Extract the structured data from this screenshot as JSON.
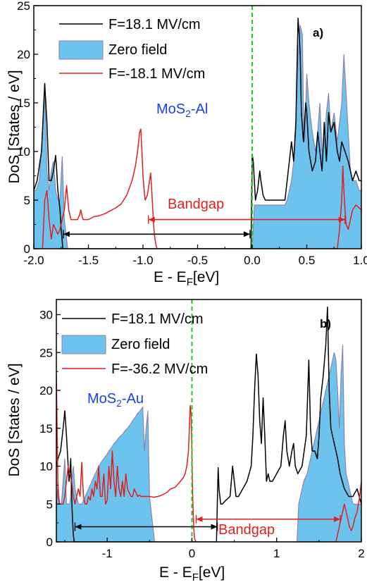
{
  "colors": {
    "field_pos": "#000000",
    "zero_field_fill": "#6cc4ee",
    "zero_field_line": "#8e7ea8",
    "field_neg": "#e02020",
    "fermi_line": "#1ecc1e",
    "material_label": "#1a3ff0",
    "bandgap": "#e02020"
  },
  "chart_data": [
    {
      "type": "line",
      "panel": "a)",
      "material_label": "MoS2-Al",
      "bandgap_label": "Bandgap",
      "xlabel": "E - EF[eV]",
      "ylabel": "DoS [States / eV]",
      "xlim": [
        -2.0,
        1.0
      ],
      "ylim": [
        0,
        25
      ],
      "xticks": [
        -2.0,
        -1.5,
        -1.0,
        -0.5,
        0.0,
        0.5,
        1.0
      ],
      "xtick_labels": [
        "-2.0",
        "-1.5",
        "-1.0",
        "-0.5",
        "0.0",
        "0.5",
        "1.0"
      ],
      "yticks": [
        0,
        5,
        10,
        15,
        20,
        25
      ],
      "ytick_labels": [
        "0",
        "5",
        "10",
        "15",
        "20",
        "25"
      ],
      "legend": [
        "F=18.1 MV/cm",
        "Zero field",
        "F=-18.1 MV/cm"
      ],
      "fermi_level": 0.0,
      "gap_arrows": [
        {
          "color": "black",
          "x_start": -1.73,
          "x_end": -0.02,
          "y": 1.5
        },
        {
          "color": "red",
          "x_start": -0.95,
          "x_end": 0.85,
          "y": 3.0
        }
      ],
      "series": [
        {
          "name": "F=18.1 MV/cm",
          "kind": "line",
          "x": [
            -2.0,
            -1.97,
            -1.93,
            -1.9,
            -1.88,
            -1.86,
            -1.84,
            -1.82,
            -1.8,
            -1.79,
            -1.78,
            -1.77,
            -1.76,
            -1.75,
            -1.74,
            -1.735,
            -0.01,
            -0.005,
            0.0,
            0.01,
            0.02,
            0.03,
            0.05,
            0.07,
            0.08,
            0.1,
            0.12,
            0.15,
            0.18,
            0.22,
            0.26,
            0.3,
            0.33,
            0.36,
            0.37,
            0.38,
            0.4,
            0.42,
            0.43,
            0.44,
            0.45,
            0.47,
            0.49,
            0.5,
            0.52,
            0.55,
            0.58,
            0.6,
            0.62,
            0.64,
            0.66,
            0.68,
            0.7,
            0.72,
            0.75,
            0.78,
            0.8,
            0.82,
            0.85,
            0.88,
            0.9,
            0.92,
            0.95,
            0.98,
            1.0
          ],
          "y": [
            6,
            7,
            10,
            17,
            13,
            7,
            7,
            8,
            9.6,
            8,
            6,
            5,
            4,
            2,
            0.8,
            0,
            0,
            5,
            9.7,
            9,
            7,
            5,
            6,
            8,
            7,
            5.5,
            5,
            5,
            5,
            5,
            5,
            5,
            8,
            11,
            10,
            9,
            13,
            23.7,
            22,
            20,
            14,
            11,
            15,
            14,
            10,
            8,
            9,
            12,
            10,
            8,
            13,
            9,
            14,
            12,
            13,
            10,
            9,
            11,
            10,
            9,
            8,
            7,
            8,
            7,
            7
          ]
        },
        {
          "name": "Zero field",
          "kind": "area",
          "x": [
            -2.0,
            -1.98,
            -1.95,
            -1.92,
            -1.9,
            -1.88,
            -1.86,
            -1.84,
            -1.82,
            -1.8,
            -1.78,
            -1.76,
            -1.74,
            -1.72,
            -1.7,
            -1.69,
            0.0,
            0.02,
            0.05,
            0.08,
            0.1,
            0.12,
            0.15,
            0.18,
            0.22,
            0.25,
            0.28,
            0.3,
            0.32,
            0.34,
            0.36,
            0.38,
            0.4,
            0.42,
            0.44,
            0.46,
            0.47,
            0.48,
            0.5,
            0.52,
            0.55,
            0.58,
            0.6,
            0.62,
            0.64,
            0.66,
            0.68,
            0.7,
            0.72,
            0.75,
            0.78,
            0.8,
            0.82,
            0.84,
            0.86,
            0.88,
            0.9,
            0.92,
            0.95,
            0.98,
            1.0
          ],
          "y": [
            6,
            6,
            7,
            12,
            17,
            8,
            6,
            8,
            9,
            6,
            5,
            5,
            9.5,
            3,
            1,
            0,
            0,
            4.5,
            4.5,
            4.5,
            4.5,
            4.5,
            4.5,
            4.5,
            4.5,
            4.5,
            4.5,
            4.5,
            5,
            6,
            7,
            9,
            12,
            20,
            23,
            22,
            14,
            11,
            18,
            15,
            12,
            10,
            12,
            15,
            10,
            11,
            14,
            16,
            12,
            14,
            11,
            13,
            15,
            20,
            16,
            12,
            8,
            7,
            7,
            6,
            6
          ]
        },
        {
          "name": "F=-18.1 MV/cm",
          "kind": "line",
          "x": [
            -1.92,
            -1.9,
            -1.88,
            -1.86,
            -1.84,
            -1.82,
            -1.8,
            -1.78,
            -1.76,
            -1.74,
            -1.72,
            -1.7,
            -1.68,
            -1.66,
            -1.64,
            -1.62,
            -1.6,
            -1.58,
            -1.57,
            -1.56,
            -1.55,
            -1.52,
            -1.5,
            -1.45,
            -1.4,
            -1.35,
            -1.3,
            -1.25,
            -1.2,
            -1.15,
            -1.1,
            -1.07,
            -1.05,
            -1.03,
            -1.02,
            -1.01,
            -1.0,
            -0.99,
            -0.98,
            -0.96,
            -0.94,
            -0.93,
            -0.92,
            -0.91,
            -0.9,
            -0.89,
            -0.88,
            -0.87,
            -0.86,
            0.78,
            0.79,
            0.8,
            0.82,
            0.83,
            0.84,
            0.85,
            0.86,
            0.88,
            0.9,
            0.92,
            0.95,
            0.98,
            1.0
          ],
          "y": [
            0,
            5,
            6,
            3,
            1,
            2.5,
            2,
            1.5,
            2,
            3,
            4,
            6.5,
            4,
            3,
            3,
            3,
            3,
            3.5,
            4,
            3.5,
            3,
            3,
            3,
            3.3,
            3.4,
            3.6,
            3.9,
            4.2,
            4.6,
            5.5,
            7,
            8.5,
            10,
            12,
            12.3,
            10,
            7.5,
            6,
            5,
            5.5,
            7,
            7.8,
            6,
            4,
            2,
            1,
            0.3,
            0,
            0,
            0,
            1,
            2,
            5,
            8.5,
            6,
            4,
            2.5,
            2,
            3,
            4,
            4.5,
            4.2,
            4
          ]
        }
      ]
    },
    {
      "type": "line",
      "panel": "b)",
      "material_label": "MoS2-Au",
      "bandgap_label": "Bandgap",
      "xlabel": "E - EF[eV]",
      "ylabel": "DoS [States / eV]",
      "xlim": [
        -1.6,
        2.0
      ],
      "ylim": [
        0,
        32
      ],
      "xticks": [
        -1,
        0,
        1,
        2
      ],
      "xtick_labels": [
        "-1",
        "0",
        "1",
        "2"
      ],
      "yticks": [
        0,
        5,
        10,
        15,
        20,
        25,
        30
      ],
      "ytick_labels": [
        "0",
        "5",
        "10",
        "15",
        "20",
        "25",
        "30"
      ],
      "legend": [
        "F=18.1 MV/cm",
        "Zero field",
        "F=-36.2 MV/cm"
      ],
      "fermi_level": 0.0,
      "gap_arrows": [
        {
          "color": "black",
          "x_start": -1.38,
          "x_end": 0.3,
          "y": 2.0
        },
        {
          "color": "red",
          "x_start": 0.05,
          "x_end": 1.75,
          "y": 3.0
        }
      ],
      "series": [
        {
          "name": "F=18.1 MV/cm",
          "kind": "line",
          "x": [
            -1.6,
            -1.58,
            -1.55,
            -1.52,
            -1.5,
            -1.48,
            -1.46,
            -1.45,
            -1.44,
            -1.43,
            -1.42,
            -1.41,
            -1.4,
            -1.39,
            0.29,
            0.3,
            0.31,
            0.32,
            0.34,
            0.36,
            0.4,
            0.45,
            0.48,
            0.5,
            0.52,
            0.55,
            0.6,
            0.65,
            0.7,
            0.72,
            0.74,
            0.76,
            0.78,
            0.8,
            0.82,
            0.84,
            0.86,
            0.88,
            0.9,
            0.92,
            0.95,
            1.0,
            1.05,
            1.08,
            1.1,
            1.12,
            1.15,
            1.18,
            1.2,
            1.22,
            1.25,
            1.3,
            1.35,
            1.38,
            1.4,
            1.42,
            1.45,
            1.48,
            1.5,
            1.52,
            1.55,
            1.58,
            1.6,
            1.62,
            1.64,
            1.66,
            1.68,
            1.7,
            1.72,
            1.75,
            1.8,
            1.85,
            1.9,
            1.95,
            2.0
          ],
          "y": [
            10,
            11,
            12,
            15,
            17.3,
            14,
            10,
            8,
            9,
            11,
            6,
            3,
            1,
            0,
            0,
            5,
            9.8,
            7,
            5,
            5,
            5.5,
            6,
            10,
            8,
            6,
            6,
            7,
            8,
            10,
            14,
            20,
            24.8,
            22,
            16,
            13,
            19,
            14,
            8,
            9,
            8,
            8,
            9,
            10,
            14,
            16,
            12,
            10,
            12,
            13,
            10,
            9,
            10,
            14,
            24,
            15,
            12,
            12,
            11,
            14,
            19,
            22,
            26,
            31,
            20,
            15,
            14,
            13,
            12,
            11,
            9,
            7,
            6,
            6,
            7,
            5
          ]
        },
        {
          "name": "Zero field",
          "kind": "area",
          "x": [
            -1.6,
            -1.58,
            -1.56,
            -1.54,
            -1.52,
            -1.5,
            -1.48,
            -1.46,
            -1.44,
            -1.42,
            -1.4,
            -1.38,
            -1.36,
            -1.34,
            -1.32,
            -1.3,
            -1.28,
            -1.26,
            -1.24,
            -1.22,
            -1.2,
            -1.18,
            -1.16,
            -1.14,
            -1.12,
            -1.1,
            -1.08,
            -1.06,
            -1.04,
            -1.02,
            -1.0,
            -0.98,
            -0.96,
            -0.94,
            -0.92,
            -0.9,
            -0.88,
            -0.86,
            -0.84,
            -0.82,
            -0.8,
            -0.78,
            -0.76,
            -0.74,
            -0.72,
            -0.7,
            -0.68,
            -0.66,
            -0.64,
            -0.62,
            -0.6,
            -0.58,
            -0.56,
            -0.54,
            -0.52,
            -0.5,
            -0.48,
            -0.46,
            -0.44,
            1.24,
            1.26,
            1.28,
            1.3,
            1.32,
            1.34,
            1.36,
            1.38,
            1.4,
            1.42,
            1.44,
            1.46,
            1.48,
            1.5,
            1.52,
            1.54,
            1.56,
            1.58,
            1.6,
            1.62,
            1.64,
            1.66,
            1.68,
            1.7,
            1.72,
            1.74,
            1.76,
            1.78,
            1.8,
            1.82,
            1.84,
            1.86,
            1.88,
            1.9,
            1.92,
            1.95,
            2.0
          ],
          "y": [
            4,
            8,
            5,
            5,
            8,
            11,
            5,
            5,
            5,
            8,
            10,
            7,
            6,
            5,
            5,
            5,
            5.5,
            6,
            6.5,
            7,
            7.5,
            8,
            8.5,
            9,
            9.5,
            10,
            10.3,
            10.7,
            11,
            11.3,
            11.6,
            12,
            12.3,
            12.6,
            13,
            13.2,
            13.5,
            13.8,
            14,
            14.2,
            14.5,
            14.8,
            15,
            15.3,
            15.6,
            16,
            16.3,
            16.6,
            17,
            17.2,
            17.5,
            17.8,
            12,
            15,
            17.3,
            6,
            4,
            2,
            0,
            0,
            5,
            6,
            7,
            8,
            8.5,
            9,
            10,
            11,
            12,
            13,
            14,
            15,
            16,
            17,
            18,
            19,
            20,
            21,
            22,
            23,
            24,
            25,
            24,
            20,
            15,
            22,
            26,
            13,
            9,
            8,
            7,
            6,
            5,
            5,
            5,
            5
          ]
        },
        {
          "name": "F=-36.2 MV/cm",
          "kind": "line",
          "x": [
            -1.6,
            -1.58,
            -1.56,
            -1.54,
            -1.52,
            -1.5,
            -1.48,
            -1.46,
            -1.44,
            -1.42,
            -1.4,
            -1.38,
            -1.36,
            -1.34,
            -1.32,
            -1.3,
            -1.28,
            -1.26,
            -1.24,
            -1.22,
            -1.2,
            -1.18,
            -1.16,
            -1.14,
            -1.12,
            -1.1,
            -1.08,
            -1.06,
            -1.04,
            -1.02,
            -1.0,
            -0.98,
            -0.96,
            -0.94,
            -0.92,
            -0.9,
            -0.88,
            -0.86,
            -0.84,
            -0.82,
            -0.8,
            -0.78,
            -0.76,
            -0.74,
            -0.72,
            -0.7,
            -0.68,
            -0.66,
            -0.64,
            -0.62,
            -0.6,
            -0.55,
            -0.5,
            -0.45,
            -0.4,
            -0.35,
            -0.3,
            -0.25,
            -0.2,
            -0.15,
            -0.1,
            -0.08,
            -0.06,
            -0.04,
            -0.03,
            -0.02,
            -0.01,
            0.0,
            0.01,
            0.02,
            0.03,
            0.04,
            0.05,
            0.06,
            1.7,
            1.72,
            1.74,
            1.76,
            1.78,
            1.8,
            1.82,
            1.84,
            1.86,
            1.88,
            1.9,
            1.92,
            1.95,
            1.98,
            2.0
          ],
          "y": [
            22,
            6,
            5,
            5,
            5,
            6,
            8,
            10,
            9,
            8,
            6,
            5,
            6,
            7,
            6,
            10.5,
            6,
            5,
            5,
            6,
            5.5,
            7,
            6,
            8,
            7,
            10,
            6,
            6,
            9,
            5,
            5.5,
            10,
            7,
            12,
            8,
            6,
            10,
            7,
            6,
            8,
            6,
            9,
            7,
            6.5,
            6,
            6,
            7,
            6.5,
            6,
            6.2,
            6,
            6,
            6,
            5.9,
            6,
            6.2,
            6.5,
            7,
            7.2,
            7.8,
            8.5,
            9,
            10,
            12,
            15,
            18,
            17,
            12,
            6,
            2,
            0.5,
            0.2,
            0,
            0,
            0,
            1,
            2,
            3,
            4,
            5,
            4,
            3,
            2,
            1.5,
            2,
            3,
            4,
            6,
            8
          ]
        }
      ]
    }
  ]
}
